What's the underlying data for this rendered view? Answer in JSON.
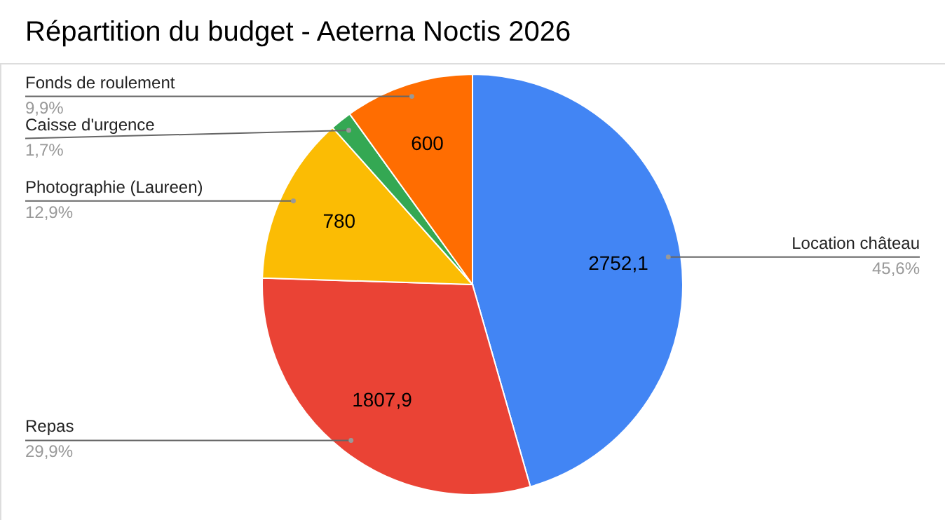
{
  "chart_data": {
    "type": "pie",
    "title": "Répartition du budget - Aeterna Noctis 2026",
    "categories": [
      "Location château",
      "Repas",
      "Photographie (Laureen)",
      "Caisse d'urgence",
      "Fonds de roulement"
    ],
    "values": [
      2752.1,
      1807.9,
      780,
      100,
      600
    ],
    "colors": [
      "#4285f4",
      "#ea4335",
      "#fbbc04",
      "#34a853",
      "#ff6d01"
    ],
    "value_labels": [
      "2752,1",
      "1807,9",
      "780",
      null,
      "600"
    ],
    "annotations": [
      "45,6%",
      "29,9%",
      "12,9%",
      "1,7%",
      "9,9%"
    ]
  }
}
